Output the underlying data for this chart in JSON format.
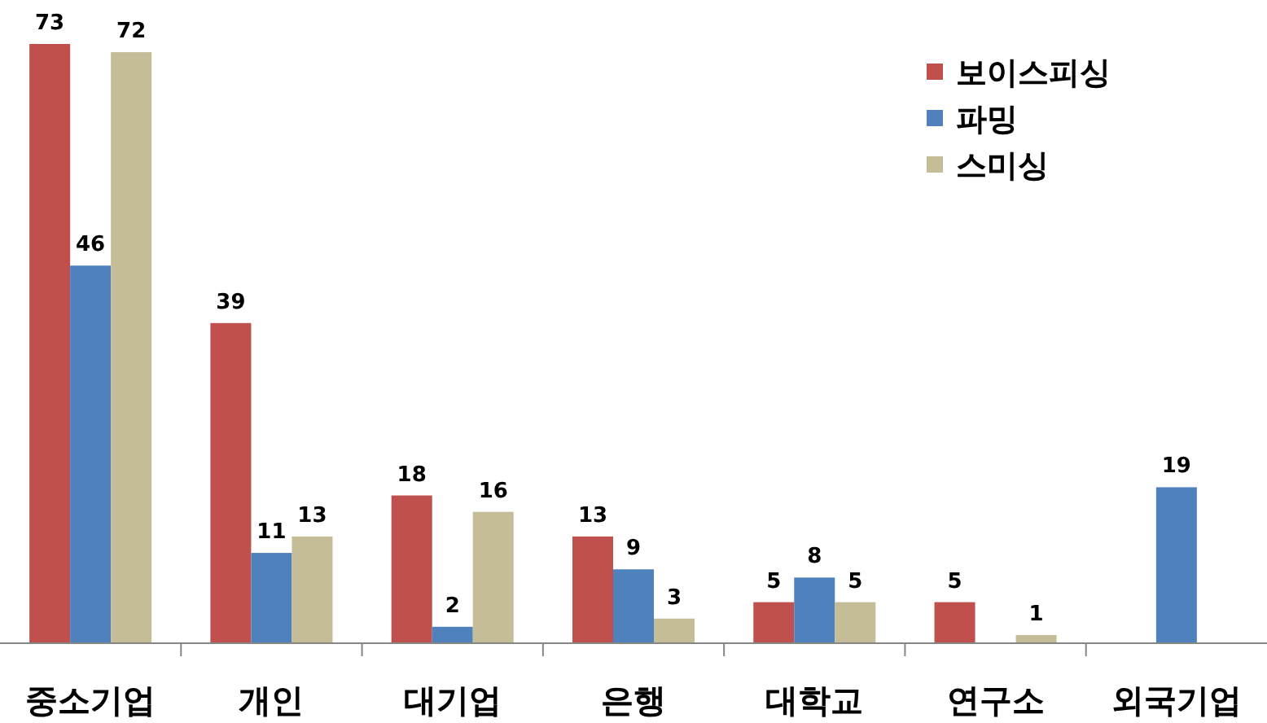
{
  "chart_data": {
    "type": "bar",
    "categories": [
      "중소기업",
      "개인",
      "대기업",
      "은행",
      "대학교",
      "연구소",
      "외국기업"
    ],
    "series": [
      {
        "name": "보이스피싱",
        "color": "#c0504d",
        "values": [
          73,
          39,
          18,
          13,
          5,
          5,
          null
        ]
      },
      {
        "name": "파밍",
        "color": "#4f81bd",
        "values": [
          46,
          11,
          2,
          9,
          8,
          null,
          19
        ]
      },
      {
        "name": "스미싱",
        "color": "#c4bd97",
        "values": [
          72,
          13,
          16,
          3,
          5,
          1,
          null
        ]
      }
    ],
    "data_labels": true,
    "legend": "top right"
  }
}
